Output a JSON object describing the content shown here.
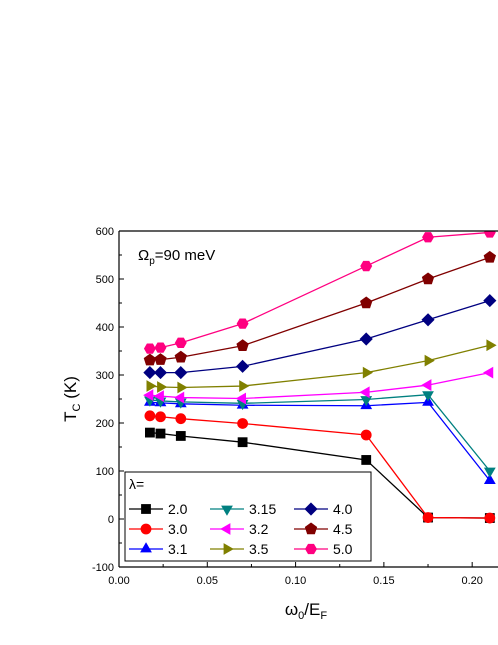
{
  "chart_data": {
    "type": "line",
    "annotation": {
      "symbol": "Ω",
      "subscript": "p",
      "text": "=90 meV"
    },
    "xlabel": {
      "main": "ω",
      "sub1": "0",
      "mid": "/E",
      "sub2": "F"
    },
    "ylabel": {
      "main": "T",
      "sub": "C",
      "rest": " (K)"
    },
    "xlim": [
      0.0,
      0.205
    ],
    "ylim": [
      -100,
      600
    ],
    "x_ticks": [
      "0.00",
      "0.05",
      "0.10",
      "0.15",
      "0.20"
    ],
    "y_ticks": [
      "-100",
      "0",
      "100",
      "200",
      "300",
      "400",
      "500",
      "600"
    ],
    "legend_title": "λ=",
    "series": [
      {
        "name": "2.0",
        "marker": "square",
        "color": "#000000",
        "points": [
          [
            0.0175,
            180
          ],
          [
            0.0235,
            178
          ],
          [
            0.035,
            173
          ],
          [
            0.07,
            160
          ],
          [
            0.14,
            123
          ],
          [
            0.175,
            3
          ],
          [
            0.21,
            2
          ]
        ]
      },
      {
        "name": "3.0",
        "marker": "circle",
        "color": "#ff0000",
        "points": [
          [
            0.0175,
            215
          ],
          [
            0.0235,
            213
          ],
          [
            0.035,
            209
          ],
          [
            0.07,
            199
          ],
          [
            0.14,
            175
          ],
          [
            0.175,
            3
          ],
          [
            0.21,
            2
          ]
        ]
      },
      {
        "name": "3.1",
        "marker": "triangle-up",
        "color": "#0000ff",
        "points": [
          [
            0.0175,
            243
          ],
          [
            0.0235,
            242
          ],
          [
            0.035,
            240
          ],
          [
            0.07,
            237
          ],
          [
            0.14,
            236
          ],
          [
            0.175,
            243
          ],
          [
            0.21,
            80
          ]
        ]
      },
      {
        "name": "3.15",
        "marker": "triangle-down",
        "color": "#008080",
        "points": [
          [
            0.0175,
            248
          ],
          [
            0.0235,
            246
          ],
          [
            0.035,
            244
          ],
          [
            0.07,
            241
          ],
          [
            0.14,
            249
          ],
          [
            0.175,
            259
          ],
          [
            0.21,
            100
          ]
        ]
      },
      {
        "name": "3.2",
        "marker": "triangle-left",
        "color": "#ff00ff",
        "points": [
          [
            0.0175,
            258
          ],
          [
            0.0235,
            256
          ],
          [
            0.035,
            253
          ],
          [
            0.07,
            251
          ],
          [
            0.14,
            264
          ],
          [
            0.175,
            279
          ],
          [
            0.21,
            305
          ]
        ]
      },
      {
        "name": "3.5",
        "marker": "triangle-right",
        "color": "#808000",
        "points": [
          [
            0.0175,
            277
          ],
          [
            0.0235,
            275
          ],
          [
            0.035,
            274
          ],
          [
            0.07,
            277
          ],
          [
            0.14,
            305
          ],
          [
            0.175,
            330
          ],
          [
            0.21,
            362
          ]
        ]
      },
      {
        "name": "4.0",
        "marker": "diamond",
        "color": "#000080",
        "points": [
          [
            0.0175,
            305
          ],
          [
            0.0235,
            305
          ],
          [
            0.035,
            305
          ],
          [
            0.07,
            318
          ],
          [
            0.14,
            375
          ],
          [
            0.175,
            415
          ],
          [
            0.21,
            455
          ]
        ]
      },
      {
        "name": "4.5",
        "marker": "pentagon",
        "color": "#800000",
        "points": [
          [
            0.0175,
            331
          ],
          [
            0.0235,
            332
          ],
          [
            0.035,
            337
          ],
          [
            0.07,
            361
          ],
          [
            0.14,
            450
          ],
          [
            0.175,
            500
          ],
          [
            0.21,
            545
          ]
        ]
      },
      {
        "name": "5.0",
        "marker": "hexagon",
        "color": "#ff0080",
        "points": [
          [
            0.0175,
            355
          ],
          [
            0.0235,
            357
          ],
          [
            0.035,
            367
          ],
          [
            0.07,
            407
          ],
          [
            0.14,
            527
          ],
          [
            0.175,
            587
          ],
          [
            0.21,
            597
          ]
        ]
      }
    ],
    "legend_placement": "bottom-left",
    "grid": false
  }
}
